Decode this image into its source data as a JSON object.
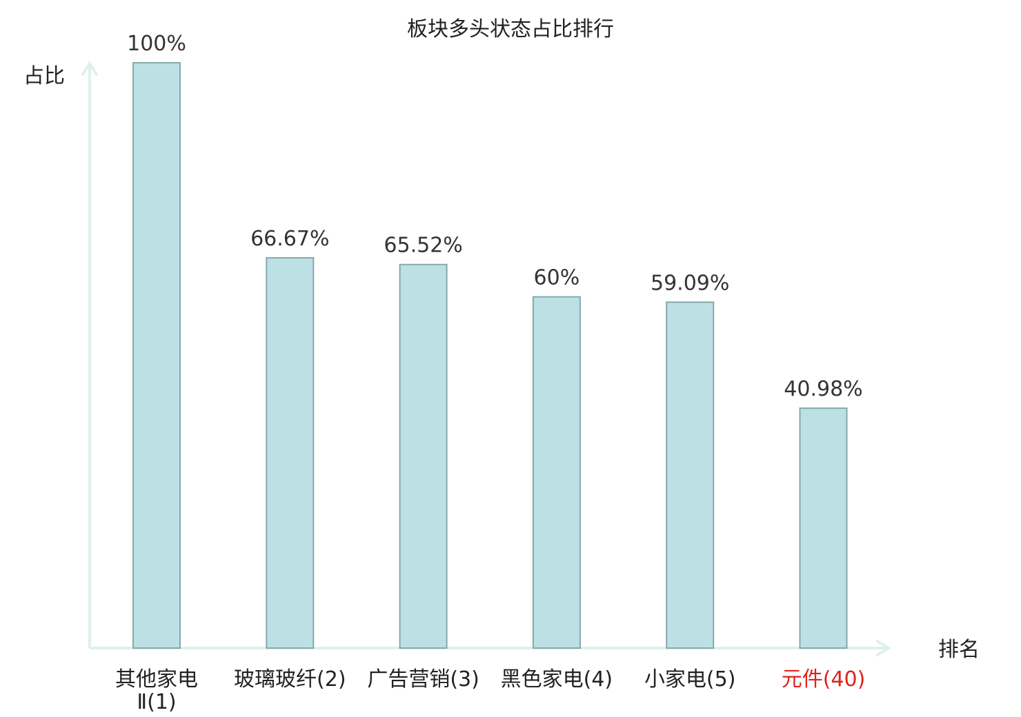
{
  "chart_data": {
    "type": "bar",
    "title": "板块多头状态占比排行",
    "ylabel": "占比",
    "xlabel": "排名",
    "ylim": [
      0,
      100
    ],
    "categories": [
      {
        "lines": [
          "其他家电",
          "Ⅱ(1)"
        ],
        "highlight": false
      },
      {
        "lines": [
          "玻璃玻纤(2)"
        ],
        "highlight": false
      },
      {
        "lines": [
          "广告营销(3)"
        ],
        "highlight": false
      },
      {
        "lines": [
          "黑色家电(4)"
        ],
        "highlight": false
      },
      {
        "lines": [
          "小家电(5)"
        ],
        "highlight": false
      },
      {
        "lines": [
          "元件(40)"
        ],
        "highlight": true
      }
    ],
    "values": [
      100,
      66.67,
      65.52,
      60,
      59.09,
      40.98
    ],
    "value_labels": [
      "100%",
      "66.67%",
      "65.52%",
      "60%",
      "59.09%",
      "40.98%"
    ],
    "grid": false,
    "colors": {
      "bar_fill": "#bce0e3",
      "bar_stroke": "#86a8ab",
      "axis": "#dff0ee",
      "text": "#222222",
      "highlight_text": "#e0201b"
    }
  }
}
